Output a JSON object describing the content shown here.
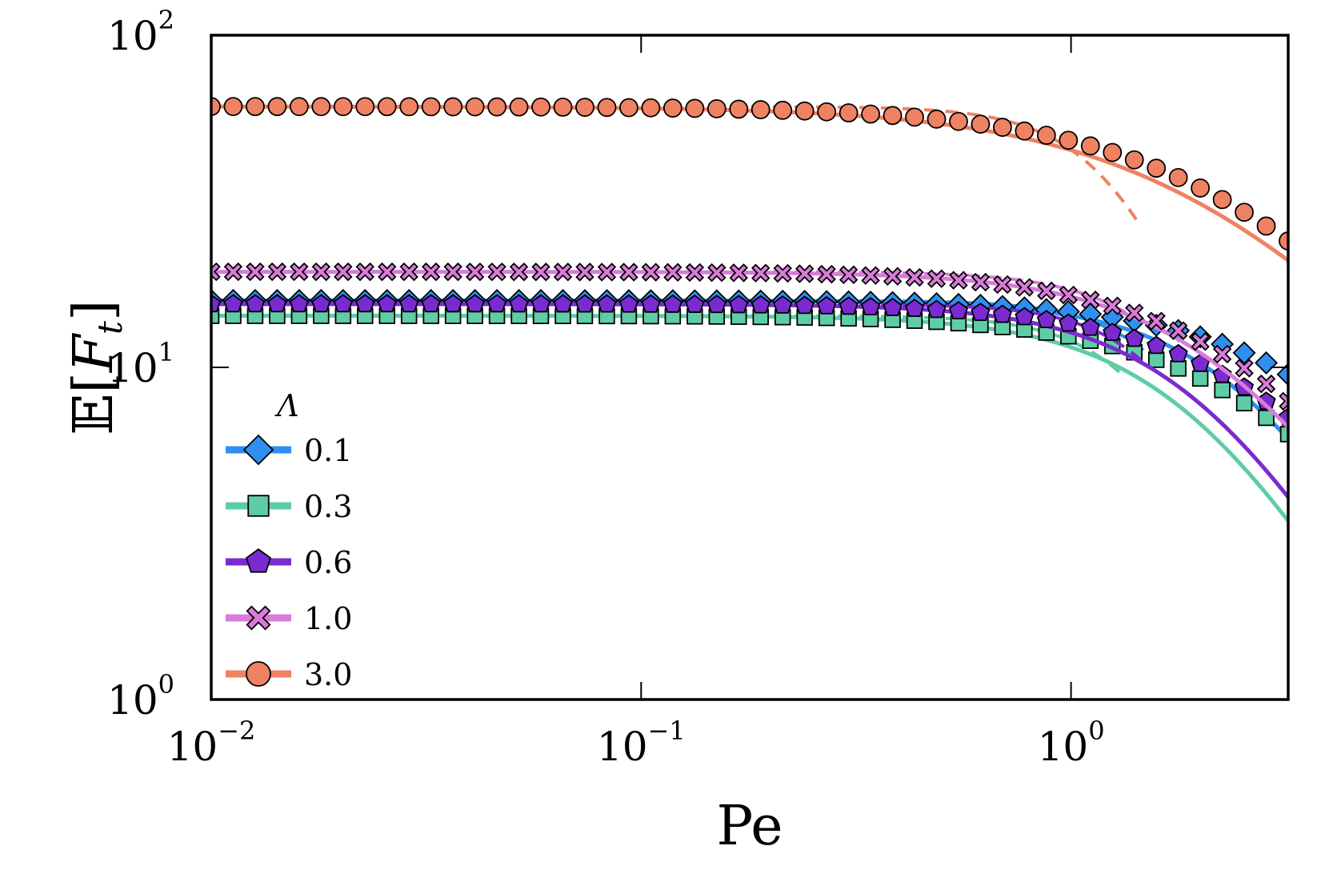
{
  "chart_data": {
    "type": "line",
    "title": "",
    "xlabel": "Pe",
    "ylabel": "E[F_t]",
    "ylabel_parts": {
      "double_struck": "𝔼",
      "open": "[",
      "var": "F",
      "sub": "t",
      "close": "]"
    },
    "xscale": "log",
    "yscale": "log",
    "xlim": [
      0.01,
      3.2
    ],
    "ylim": [
      1,
      100
    ],
    "x_ticks": [
      {
        "value": 0.01,
        "base": "10",
        "exp": "−2"
      },
      {
        "value": 0.1,
        "base": "10",
        "exp": "−1"
      },
      {
        "value": 1,
        "base": "10",
        "exp": "0"
      }
    ],
    "y_ticks": [
      {
        "value": 1,
        "base": "10",
        "exp": "0"
      },
      {
        "value": 10,
        "base": "10",
        "exp": "1"
      },
      {
        "value": 100,
        "base": "10",
        "exp": "2"
      }
    ],
    "legend": {
      "title": "Λ",
      "position": "lower-left"
    },
    "series": [
      {
        "name": "0.1",
        "color": "#2f8ff0",
        "marker": "diamond",
        "plateau": 15.9,
        "solid_knee": 2.6,
        "solid_p": 2.3,
        "dashed_knee": 1.9,
        "dashed_p": 3.5,
        "dashed_end": 1.5,
        "marker_knee": 4.0,
        "marker_p": 1.8
      },
      {
        "name": "0.3",
        "color": "#5ecda6",
        "marker": "square",
        "plateau": 14.3,
        "solid_knee": 1.9,
        "solid_p": 2.2,
        "dashed_knee": 1.6,
        "dashed_p": 3.5,
        "dashed_end": 1.3,
        "marker_knee": 2.8,
        "marker_p": 1.8
      },
      {
        "name": "0.6",
        "color": "#7a2bd0",
        "marker": "pentagon",
        "plateau": 15.5,
        "solid_knee": 2.0,
        "solid_p": 2.2,
        "dashed_knee": 1.8,
        "dashed_p": 3.5,
        "dashed_end": 1.5,
        "marker_knee": 2.9,
        "marker_p": 1.8
      },
      {
        "name": "1.0",
        "color": "#d97bd9",
        "marker": "x",
        "plateau": 19.4,
        "solid_knee": 2.3,
        "solid_p": 2.0,
        "dashed_knee": 1.95,
        "dashed_p": 3.0,
        "dashed_end": 1.45,
        "marker_knee": 2.6,
        "marker_p": 1.8
      },
      {
        "name": "3.0",
        "color": "#ef8262",
        "marker": "circle",
        "plateau": 61,
        "solid_knee": 2.05,
        "solid_p": 1.45,
        "dashed_knee": 1.35,
        "dashed_p": 3.5,
        "dashed_end": 1.45,
        "marker_knee": 2.4,
        "marker_p": 1.5
      }
    ]
  }
}
